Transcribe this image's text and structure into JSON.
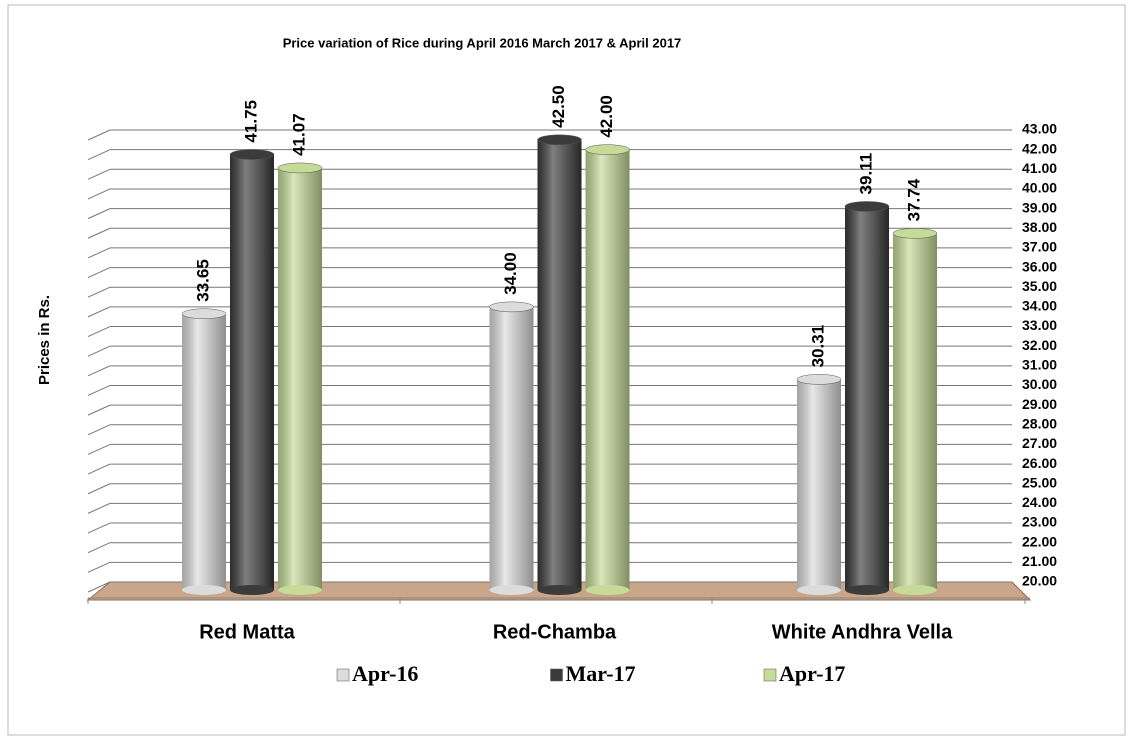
{
  "chart_data": {
    "type": "bar",
    "title": "Price variation of Rice during  April  2016  March  2017 &  April 2017",
    "y_label": "Prices in Rs.",
    "categories": [
      "Red Matta",
      "Red-Chamba",
      "White Andhra Vella"
    ],
    "series": [
      {
        "name": "Apr-16",
        "color": "#dcdcdc",
        "values": [
          33.65,
          34.0,
          30.31
        ],
        "value_labels": [
          "33.65",
          "34.00",
          "30.31"
        ]
      },
      {
        "name": "Mar-17",
        "color": "#3b3b3b",
        "values": [
          41.75,
          42.5,
          39.11
        ],
        "value_labels": [
          "41.75",
          "42.50",
          "39.11"
        ]
      },
      {
        "name": "Apr-17",
        "color": "#c5db97",
        "values": [
          41.07,
          42.0,
          37.74
        ],
        "value_labels": [
          "41.07",
          "42.00",
          "37.74"
        ]
      }
    ],
    "ylim": [
      20,
      43
    ],
    "yticks": [
      {
        "value": 20,
        "label": "20.00"
      },
      {
        "value": 21,
        "label": "21.00"
      },
      {
        "value": 22,
        "label": "22.00"
      },
      {
        "value": 23,
        "label": "23.00"
      },
      {
        "value": 24,
        "label": "24.00"
      },
      {
        "value": 25,
        "label": "25.00"
      },
      {
        "value": 26,
        "label": "26.00"
      },
      {
        "value": 27,
        "label": "27.00"
      },
      {
        "value": 28,
        "label": "28.00"
      },
      {
        "value": 29,
        "label": "29.00"
      },
      {
        "value": 30,
        "label": "30.00"
      },
      {
        "value": 31,
        "label": "31.00"
      },
      {
        "value": 32,
        "label": "32.00"
      },
      {
        "value": 33,
        "label": "33.00"
      },
      {
        "value": 34,
        "label": "34.00"
      },
      {
        "value": 35,
        "label": "35.00"
      },
      {
        "value": 36,
        "label": "36.00"
      },
      {
        "value": 37,
        "label": "37.00"
      },
      {
        "value": 38,
        "label": "38.00"
      },
      {
        "value": 39,
        "label": "39.00"
      },
      {
        "value": 40,
        "label": "40.00"
      },
      {
        "value": 41,
        "label": "41.00"
      },
      {
        "value": 42,
        "label": "42.00"
      },
      {
        "value": 43,
        "label": "43.00"
      }
    ],
    "grid": true,
    "legend": "bottom"
  }
}
